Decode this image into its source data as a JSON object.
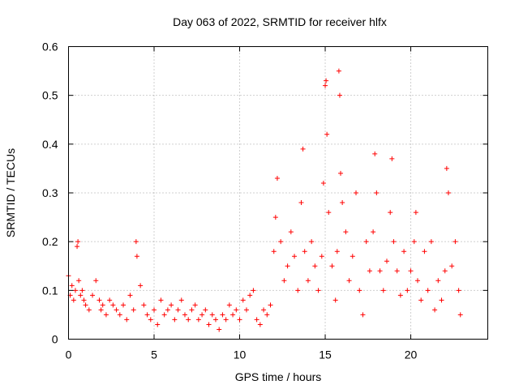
{
  "chart_data": {
    "type": "scatter",
    "title": "Day 063 of 2022, SRMTID for receiver hlfx",
    "xlabel": "GPS time / hours",
    "ylabel": "SRMTID / TECUs",
    "xlim": [
      0,
      24.5
    ],
    "ylim": [
      0,
      0.6
    ],
    "xticks": [
      0,
      5,
      10,
      15,
      20
    ],
    "yticks": [
      0,
      0.1,
      0.2,
      0.3,
      0.4,
      0.5,
      0.6
    ],
    "xtick_labels": [
      "0",
      "5",
      "10",
      "15",
      "20"
    ],
    "ytick_labels": [
      "0",
      "0.1",
      "0.2",
      "0.3",
      "0.4",
      "0.5",
      "0.6"
    ],
    "grid": true,
    "marker": "+",
    "color": "#ff0000",
    "series": [
      {
        "name": "SRMTID",
        "x": [
          0.0,
          0.1,
          0.2,
          0.3,
          0.4,
          0.5,
          0.55,
          0.6,
          0.7,
          0.8,
          0.9,
          1.0,
          1.2,
          1.4,
          1.6,
          1.8,
          1.9,
          2.0,
          2.2,
          2.4,
          2.6,
          2.8,
          3.0,
          3.2,
          3.4,
          3.6,
          3.8,
          3.95,
          4.0,
          4.2,
          4.4,
          4.6,
          4.8,
          5.0,
          5.2,
          5.4,
          5.6,
          5.8,
          6.0,
          6.2,
          6.4,
          6.6,
          6.8,
          7.0,
          7.2,
          7.4,
          7.6,
          7.8,
          8.0,
          8.2,
          8.4,
          8.6,
          8.8,
          9.0,
          9.2,
          9.4,
          9.6,
          9.8,
          10.0,
          10.2,
          10.4,
          10.6,
          10.8,
          11.0,
          11.2,
          11.4,
          11.6,
          11.8,
          12.0,
          12.1,
          12.2,
          12.4,
          12.6,
          12.8,
          13.0,
          13.2,
          13.4,
          13.6,
          13.7,
          13.8,
          14.0,
          14.2,
          14.4,
          14.6,
          14.8,
          14.9,
          15.0,
          15.05,
          15.1,
          15.2,
          15.4,
          15.6,
          15.7,
          15.8,
          15.85,
          15.9,
          16.0,
          16.2,
          16.4,
          16.6,
          16.8,
          17.0,
          17.2,
          17.4,
          17.6,
          17.8,
          17.9,
          18.0,
          18.2,
          18.4,
          18.6,
          18.8,
          18.9,
          19.0,
          19.2,
          19.4,
          19.6,
          19.8,
          20.0,
          20.2,
          20.3,
          20.4,
          20.6,
          20.8,
          21.0,
          21.2,
          21.4,
          21.6,
          21.8,
          22.0,
          22.1,
          22.2,
          22.4,
          22.6,
          22.8,
          22.9
        ],
        "y": [
          0.13,
          0.09,
          0.11,
          0.08,
          0.1,
          0.19,
          0.2,
          0.12,
          0.09,
          0.1,
          0.08,
          0.07,
          0.06,
          0.09,
          0.12,
          0.08,
          0.06,
          0.07,
          0.05,
          0.08,
          0.07,
          0.06,
          0.05,
          0.07,
          0.04,
          0.09,
          0.06,
          0.2,
          0.17,
          0.11,
          0.07,
          0.05,
          0.04,
          0.06,
          0.03,
          0.08,
          0.05,
          0.06,
          0.07,
          0.04,
          0.06,
          0.08,
          0.05,
          0.04,
          0.06,
          0.07,
          0.04,
          0.05,
          0.06,
          0.03,
          0.05,
          0.04,
          0.02,
          0.05,
          0.04,
          0.07,
          0.05,
          0.06,
          0.04,
          0.08,
          0.06,
          0.09,
          0.1,
          0.04,
          0.03,
          0.06,
          0.05,
          0.07,
          0.18,
          0.25,
          0.33,
          0.2,
          0.12,
          0.15,
          0.22,
          0.17,
          0.1,
          0.28,
          0.39,
          0.18,
          0.12,
          0.2,
          0.15,
          0.1,
          0.17,
          0.32,
          0.52,
          0.53,
          0.42,
          0.26,
          0.15,
          0.08,
          0.18,
          0.55,
          0.5,
          0.34,
          0.28,
          0.22,
          0.12,
          0.17,
          0.3,
          0.1,
          0.05,
          0.2,
          0.14,
          0.22,
          0.38,
          0.3,
          0.14,
          0.1,
          0.16,
          0.26,
          0.37,
          0.2,
          0.14,
          0.09,
          0.18,
          0.1,
          0.14,
          0.2,
          0.26,
          0.12,
          0.08,
          0.18,
          0.1,
          0.2,
          0.06,
          0.12,
          0.08,
          0.14,
          0.35,
          0.3,
          0.15,
          0.2,
          0.1,
          0.05
        ]
      }
    ]
  }
}
